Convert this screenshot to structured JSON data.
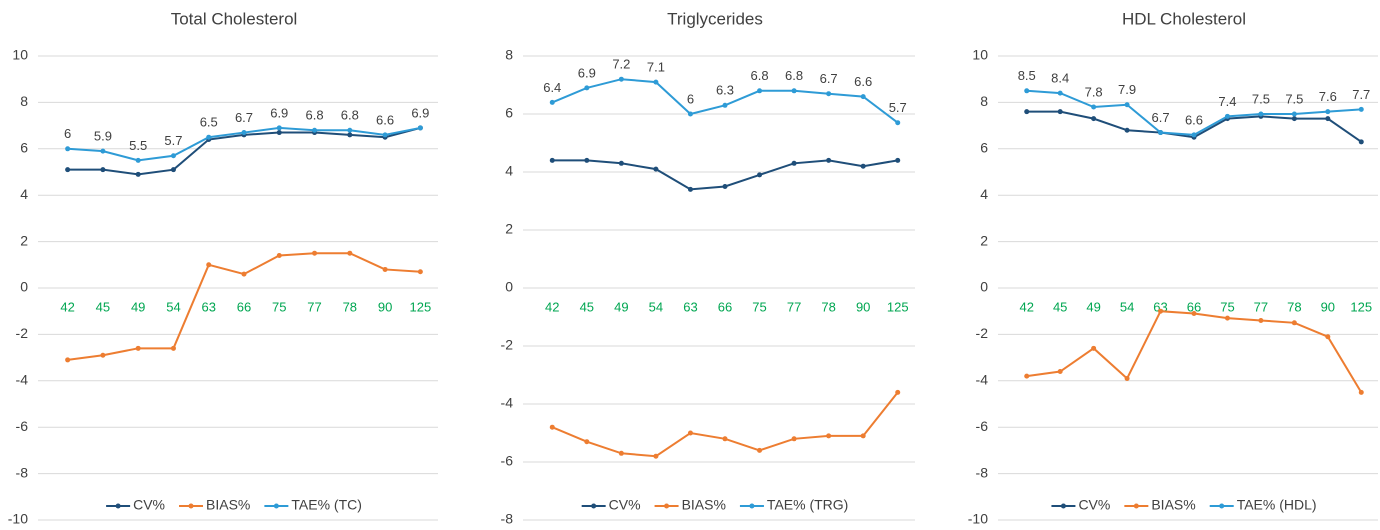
{
  "chart_data": [
    {
      "type": "line",
      "title": "Total Cholesterol",
      "categories": [
        "42",
        "45",
        "49",
        "54",
        "63",
        "66",
        "75",
        "77",
        "78",
        "90",
        "125"
      ],
      "category_label_color": "#00a651",
      "series": [
        {
          "name": "CV%",
          "color": "#1f4e79",
          "values": [
            5.1,
            5.1,
            4.9,
            5.1,
            6.4,
            6.6,
            6.7,
            6.7,
            6.6,
            6.5,
            6.9
          ]
        },
        {
          "name": "BIAS%",
          "color": "#ed7d31",
          "values": [
            -3.1,
            -2.9,
            -2.6,
            -2.6,
            1.0,
            0.6,
            1.4,
            1.5,
            1.5,
            0.8,
            0.7
          ]
        },
        {
          "name": "TAE% (TC)",
          "color": "#2e9bd6",
          "data_labels": true,
          "values": [
            6,
            5.9,
            5.5,
            5.7,
            6.5,
            6.7,
            6.9,
            6.8,
            6.8,
            6.6,
            6.9
          ]
        }
      ],
      "ylim": [
        -10,
        10
      ],
      "yticks": [
        -10,
        -8,
        -6,
        -4,
        -2,
        0,
        2,
        4,
        6,
        8,
        10
      ],
      "grid": true,
      "legend": "bottom"
    },
    {
      "type": "line",
      "title": "Triglycerides",
      "categories": [
        "42",
        "45",
        "49",
        "54",
        "63",
        "66",
        "75",
        "77",
        "78",
        "90",
        "125"
      ],
      "category_label_color": "#00a651",
      "series": [
        {
          "name": "CV%",
          "color": "#1f4e79",
          "values": [
            4.4,
            4.4,
            4.3,
            4.1,
            3.4,
            3.5,
            3.9,
            4.3,
            4.4,
            4.2,
            4.4
          ]
        },
        {
          "name": "BIAS%",
          "color": "#ed7d31",
          "values": [
            -4.8,
            -5.3,
            -5.7,
            -5.8,
            -5.0,
            -5.2,
            -5.6,
            -5.2,
            -5.1,
            -5.1,
            -3.6
          ]
        },
        {
          "name": "TAE% (TRG)",
          "color": "#2e9bd6",
          "data_labels": true,
          "values": [
            6.4,
            6.9,
            7.2,
            7.1,
            6,
            6.3,
            6.8,
            6.8,
            6.7,
            6.6,
            5.7
          ]
        }
      ],
      "ylim": [
        -8,
        8
      ],
      "yticks": [
        -8,
        -6,
        -4,
        -2,
        0,
        2,
        4,
        6,
        8
      ],
      "grid": true,
      "legend": "bottom"
    },
    {
      "type": "line",
      "title": "HDL Cholesterol",
      "categories": [
        "42",
        "45",
        "49",
        "54",
        "63",
        "66",
        "75",
        "77",
        "78",
        "90",
        "125"
      ],
      "category_label_color": "#00a651",
      "series": [
        {
          "name": "CV%",
          "color": "#1f4e79",
          "values": [
            7.6,
            7.6,
            7.3,
            6.8,
            6.7,
            6.5,
            7.3,
            7.4,
            7.3,
            7.3,
            6.3
          ]
        },
        {
          "name": "BIAS%",
          "color": "#ed7d31",
          "values": [
            -3.8,
            -3.6,
            -2.6,
            -3.9,
            -1.0,
            -1.1,
            -1.3,
            -1.4,
            -1.5,
            -2.1,
            -4.5
          ]
        },
        {
          "name": "TAE% (HDL)",
          "color": "#2e9bd6",
          "data_labels": true,
          "values": [
            8.5,
            8.4,
            7.8,
            7.9,
            6.7,
            6.6,
            7.4,
            7.5,
            7.5,
            7.6,
            7.7
          ]
        }
      ],
      "ylim": [
        -10,
        10
      ],
      "yticks": [
        -10,
        -8,
        -6,
        -4,
        -2,
        0,
        2,
        4,
        6,
        8,
        10
      ],
      "grid": true,
      "legend": "bottom"
    }
  ]
}
